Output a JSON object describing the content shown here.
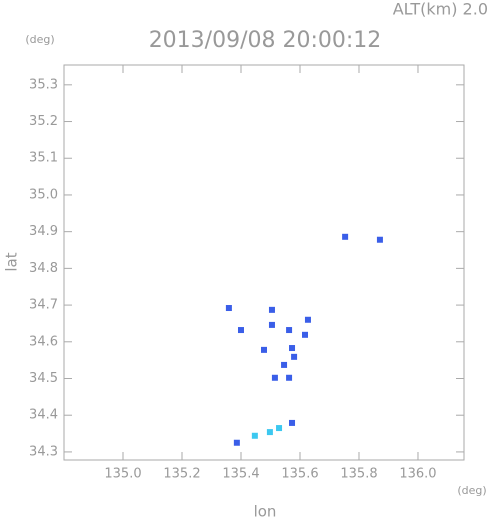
{
  "chart_data": {
    "type": "scatter",
    "title": "2013/09/08 20:00:12",
    "subtitle": "ALT(km)  2.0",
    "xlabel": "lon",
    "ylabel": "lat",
    "xunit": "(deg)",
    "yunit": "(deg)",
    "xlim": [
      134.8,
      136.156
    ],
    "ylim": [
      34.278,
      35.354
    ],
    "xticks": [
      {
        "value": 135.0,
        "label": "135.0"
      },
      {
        "value": 135.2,
        "label": "135.2"
      },
      {
        "value": 135.4,
        "label": "135.4"
      },
      {
        "value": 135.6,
        "label": "135.6"
      },
      {
        "value": 135.8,
        "label": "135.8"
      },
      {
        "value": 136.0,
        "label": "136.0"
      }
    ],
    "yticks": [
      {
        "value": 34.3,
        "label": "34.3"
      },
      34.4,
      34.5,
      34.6,
      34.7,
      34.8,
      34.9,
      {
        "value": 35.0,
        "label": "35.0"
      },
      35.1,
      35.2,
      35.3
    ],
    "series": [
      {
        "color": "#3a5ee8",
        "x": [
          135.753,
          135.871,
          135.359,
          135.4,
          135.505,
          135.505,
          135.563,
          135.573,
          135.58,
          135.546,
          135.478,
          135.515,
          135.563,
          135.627,
          135.617,
          135.573,
          135.386
        ],
        "values": [
          34.886,
          34.878,
          34.692,
          34.632,
          34.687,
          34.646,
          34.632,
          34.583,
          34.559,
          34.537,
          34.578,
          34.502,
          34.502,
          34.66,
          34.619,
          34.379,
          34.325
        ]
      },
      {
        "color": "#3cc8f0",
        "x": [
          135.498,
          135.447,
          135.529
        ],
        "values": [
          34.354,
          34.344,
          34.365
        ]
      }
    ]
  }
}
